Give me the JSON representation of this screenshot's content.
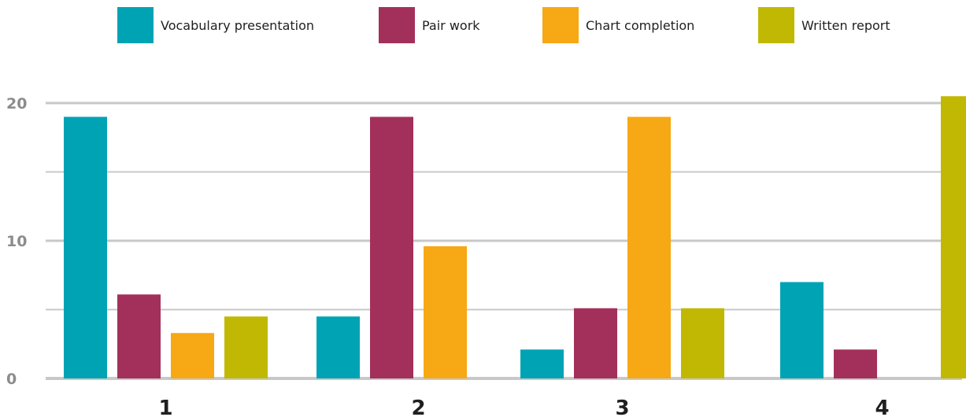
{
  "chart_data": {
    "type": "bar",
    "categories": [
      "1",
      "2",
      "3",
      "4"
    ],
    "series": [
      {
        "name": "Vocabulary presentation",
        "color": "#00a3b4",
        "values": [
          19,
          4.5,
          2.1,
          7
        ]
      },
      {
        "name": "Pair work",
        "color": "#a3305b",
        "values": [
          6.1,
          19,
          5.1,
          2.1
        ]
      },
      {
        "name": "Chart completion",
        "color": "#f7a815",
        "values": [
          3.3,
          9.6,
          19,
          null
        ]
      },
      {
        "name": "Written report",
        "color": "#c0b803",
        "values": [
          4.5,
          null,
          5.1,
          20.5
        ]
      }
    ],
    "ylim": [
      0,
      20
    ],
    "yticks": [
      "0",
      "10",
      "20"
    ],
    "grid": true,
    "legend_position": "top",
    "colors": {
      "grid": "#c8c8c8",
      "ytick_text": "#8c8c8c",
      "xtick_text": "#1f1f1f"
    }
  }
}
